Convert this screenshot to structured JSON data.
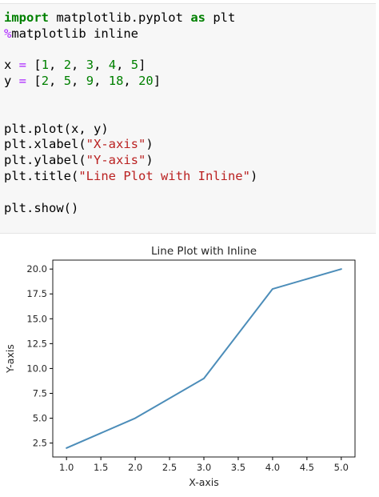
{
  "code_cell": {
    "lines": [
      [
        {
          "t": "import",
          "c": "kw"
        },
        {
          "t": " matplotlib.pyplot ",
          "c": ""
        },
        {
          "t": "as",
          "c": "kw"
        },
        {
          "t": " plt",
          "c": ""
        }
      ],
      [
        {
          "t": "%",
          "c": "mg"
        },
        {
          "t": "matplotlib inline",
          "c": ""
        }
      ],
      [],
      [
        {
          "t": "x ",
          "c": ""
        },
        {
          "t": "=",
          "c": "op"
        },
        {
          "t": " [",
          "c": ""
        },
        {
          "t": "1",
          "c": "num"
        },
        {
          "t": ", ",
          "c": ""
        },
        {
          "t": "2",
          "c": "num"
        },
        {
          "t": ", ",
          "c": ""
        },
        {
          "t": "3",
          "c": "num"
        },
        {
          "t": ", ",
          "c": ""
        },
        {
          "t": "4",
          "c": "num"
        },
        {
          "t": ", ",
          "c": ""
        },
        {
          "t": "5",
          "c": "num"
        },
        {
          "t": "]",
          "c": ""
        }
      ],
      [
        {
          "t": "y ",
          "c": ""
        },
        {
          "t": "=",
          "c": "op"
        },
        {
          "t": " [",
          "c": ""
        },
        {
          "t": "2",
          "c": "num"
        },
        {
          "t": ", ",
          "c": ""
        },
        {
          "t": "5",
          "c": "num"
        },
        {
          "t": ", ",
          "c": ""
        },
        {
          "t": "9",
          "c": "num"
        },
        {
          "t": ", ",
          "c": ""
        },
        {
          "t": "18",
          "c": "num"
        },
        {
          "t": ", ",
          "c": ""
        },
        {
          "t": "20",
          "c": "num"
        },
        {
          "t": "]",
          "c": ""
        }
      ],
      [],
      [],
      [
        {
          "t": "plt.plot(x, y)",
          "c": ""
        }
      ],
      [
        {
          "t": "plt.xlabel(",
          "c": ""
        },
        {
          "t": "\"X-axis\"",
          "c": "str"
        },
        {
          "t": ")",
          "c": ""
        }
      ],
      [
        {
          "t": "plt.ylabel(",
          "c": ""
        },
        {
          "t": "\"Y-axis\"",
          "c": "str"
        },
        {
          "t": ")",
          "c": ""
        }
      ],
      [
        {
          "t": "plt.title(",
          "c": ""
        },
        {
          "t": "\"Line Plot with Inline\"",
          "c": "str"
        },
        {
          "t": ")",
          "c": ""
        }
      ],
      [],
      [
        {
          "t": "plt.show()",
          "c": ""
        }
      ]
    ]
  },
  "colors": {
    "line": "#4c8db9",
    "axes": "#000000",
    "text": "#262626"
  },
  "chart_data": {
    "type": "line",
    "title": "Line Plot with Inline",
    "xlabel": "X-axis",
    "ylabel": "Y-axis",
    "x": [
      1,
      2,
      3,
      4,
      5
    ],
    "series": [
      {
        "values": [
          2,
          5,
          9,
          18,
          20
        ]
      }
    ],
    "xlim": [
      0.8,
      5.2
    ],
    "ylim": [
      1.1,
      20.9
    ],
    "xticks": [
      1.0,
      1.5,
      2.0,
      2.5,
      3.0,
      3.5,
      4.0,
      4.5,
      5.0
    ],
    "xtick_labels": [
      "1.0",
      "1.5",
      "2.0",
      "2.5",
      "3.0",
      "3.5",
      "4.0",
      "4.5",
      "5.0"
    ],
    "yticks": [
      2.5,
      5.0,
      7.5,
      10.0,
      12.5,
      15.0,
      17.5,
      20.0
    ],
    "ytick_labels": [
      "2.5",
      "5.0",
      "7.5",
      "10.0",
      "12.5",
      "15.0",
      "17.5",
      "20.0"
    ],
    "grid": false,
    "legend": "none"
  }
}
